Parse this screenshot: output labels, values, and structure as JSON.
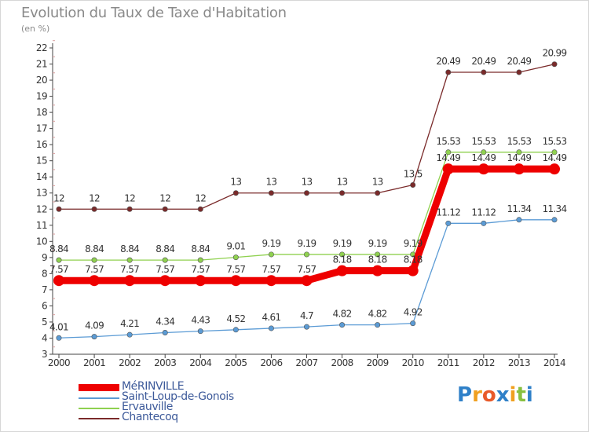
{
  "header": {
    "title": "Evolution du Taux de Taxe d'Habitation",
    "subtitle": "(en %)"
  },
  "chart_data": {
    "type": "line",
    "title": "Evolution du Taux de Taxe d'Habitation",
    "ylabel": "(en %)",
    "xlabel": "",
    "x": [
      "2000",
      "2001",
      "2002",
      "2003",
      "2004",
      "2005",
      "2006",
      "2007",
      "2008",
      "2009",
      "2010",
      "2011",
      "2012",
      "2013",
      "2014"
    ],
    "yticks": [
      3,
      4,
      5,
      6,
      7,
      8,
      9,
      10,
      11,
      12,
      13,
      14,
      15,
      16,
      17,
      18,
      19,
      20,
      21,
      22
    ],
    "ylim": [
      3,
      22
    ],
    "grid": false,
    "legend_position": "bottom-left",
    "series": [
      {
        "name": "MéRINVILLE",
        "color": "#ee0000",
        "values": [
          7.57,
          7.57,
          7.57,
          7.57,
          7.57,
          7.57,
          7.57,
          7.57,
          8.18,
          8.18,
          8.18,
          14.49,
          14.49,
          14.49,
          14.49
        ],
        "labels": [
          "7.57",
          "7.57",
          "7.57",
          "7.57",
          "7.57",
          "7.57",
          "7.57",
          "7.57",
          "8.18",
          "8.18",
          "8.18",
          "14.49",
          "14.49",
          "14.49",
          "14.49"
        ]
      },
      {
        "name": "Saint-Loup-de-Gonois",
        "color": "#5b9bd5",
        "values": [
          4.01,
          4.09,
          4.21,
          4.34,
          4.43,
          4.52,
          4.61,
          4.7,
          4.82,
          4.82,
          4.92,
          11.12,
          11.12,
          11.34,
          11.34
        ],
        "labels": [
          "4.01",
          "4.09",
          "4.21",
          "4.34",
          "4.43",
          "4.52",
          "4.61",
          "4.7",
          "4.82",
          "4.82",
          "4.92",
          "11.12",
          "11.12",
          "11.34",
          "11.34"
        ]
      },
      {
        "name": "Ervauville",
        "color": "#8fd14f",
        "values": [
          8.84,
          8.84,
          8.84,
          8.84,
          8.84,
          9.01,
          9.19,
          9.19,
          9.19,
          9.19,
          9.19,
          15.53,
          15.53,
          15.53,
          15.53
        ],
        "labels": [
          "8.84",
          "8.84",
          "8.84",
          "8.84",
          "8.84",
          "9.01",
          "9.19",
          "9.19",
          "9.19",
          "9.19",
          "9.19",
          "15.53",
          "15.53",
          "15.53",
          "15.53"
        ]
      },
      {
        "name": "Chantecoq",
        "color": "#7a2a2a",
        "values": [
          12,
          12,
          12,
          12,
          12,
          13,
          13,
          13,
          13,
          13,
          13.5,
          20.49,
          20.49,
          20.49,
          20.99
        ],
        "labels": [
          "12",
          "12",
          "12",
          "12",
          "12",
          "13",
          "13",
          "13",
          "13",
          "13",
          "13.5",
          "20.49",
          "20.49",
          "20.49",
          "20.99"
        ]
      }
    ]
  },
  "brand": {
    "text": "Proxiti",
    "colors": [
      "#2f80c8",
      "#f0a020",
      "#e85a2a",
      "#2f80c8",
      "#f0a020",
      "#88c040",
      "#2f80c8"
    ]
  }
}
